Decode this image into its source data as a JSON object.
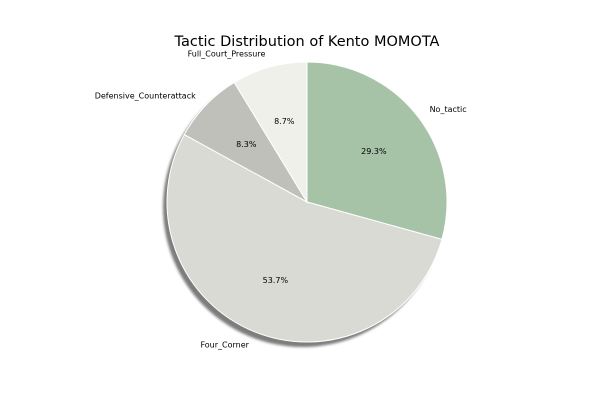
{
  "chart_data": {
    "type": "pie",
    "title": "Tactic Distribution of Kento MOMOTA",
    "start_angle_deg": 90,
    "direction": "clockwise",
    "shadow": true,
    "slices": [
      {
        "label": "No_tactic",
        "value": 29.3,
        "pct_label": "29.3%",
        "color": "#a6c3a7"
      },
      {
        "label": "Four_Corner",
        "value": 53.7,
        "pct_label": "53.7%",
        "color": "#d9dad4"
      },
      {
        "label": "Defensive_Counterattack",
        "value": 8.3,
        "pct_label": "8.3%",
        "color": "#bfc0b9"
      },
      {
        "label": "Full_Court_Pressure",
        "value": 8.7,
        "pct_label": "8.7%",
        "color": "#f0f0ea"
      }
    ]
  }
}
